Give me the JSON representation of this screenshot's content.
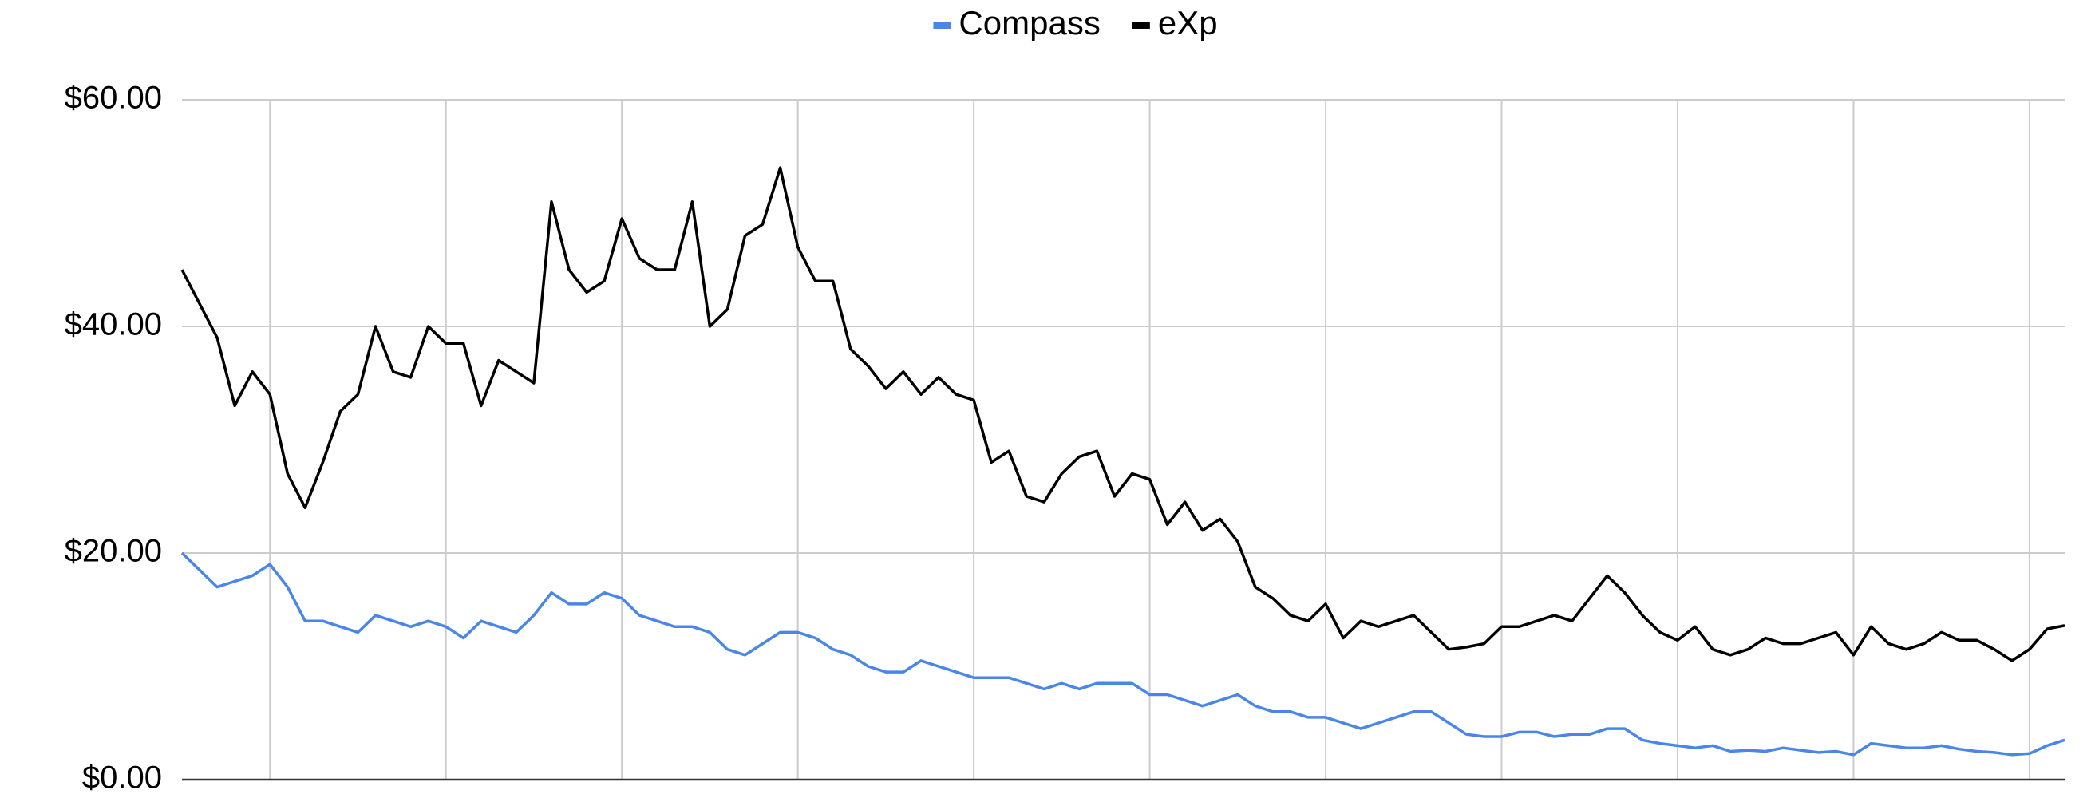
{
  "chart_data": {
    "type": "line",
    "categories": [
      null,
      null,
      null,
      null,
      null,
      null,
      null,
      null,
      null,
      null,
      null,
      null,
      null,
      null,
      null,
      null,
      null,
      null,
      null,
      null,
      null,
      null,
      null,
      null,
      null,
      null,
      null,
      null,
      null,
      null,
      null,
      null,
      null,
      null,
      null,
      null,
      null,
      null,
      null,
      null,
      null,
      null,
      null,
      null,
      null,
      null,
      null,
      null,
      null,
      null,
      null,
      null,
      null,
      null,
      null,
      null,
      null,
      null,
      null,
      null,
      null,
      null,
      null,
      null,
      null,
      null,
      null,
      null,
      null,
      null,
      null,
      null,
      null,
      null,
      null,
      null,
      null,
      null,
      null,
      null,
      null,
      null,
      null,
      null,
      null,
      null,
      null,
      null,
      null,
      null,
      null,
      null,
      null,
      null,
      null,
      null,
      null,
      null,
      null,
      null,
      null,
      null,
      null,
      null,
      null,
      null,
      null,
      null
    ],
    "series": [
      {
        "name": "Compass",
        "color": "#4a86e8",
        "values": [
          20,
          18.5,
          17,
          17.5,
          18,
          19,
          17,
          14,
          14,
          13.5,
          13,
          14.5,
          14,
          13.5,
          14,
          13.5,
          12.5,
          14,
          13.5,
          13,
          14.5,
          16.5,
          15.5,
          15.5,
          16.5,
          16,
          14.5,
          14,
          13.5,
          13.5,
          13,
          11.5,
          11,
          12,
          13,
          13,
          12.5,
          11.5,
          11,
          10,
          9.5,
          9.5,
          10.5,
          10,
          9.5,
          9,
          9,
          9,
          8.5,
          8,
          8.5,
          8,
          8.5,
          8.5,
          8.5,
          7.5,
          7.5,
          7,
          6.5,
          7,
          7.5,
          6.5,
          6,
          6,
          5.5,
          5.5,
          5,
          4.5,
          5,
          5.5,
          6,
          6,
          5,
          4,
          3.8,
          3.8,
          4.2,
          4.2,
          3.8,
          4,
          4,
          4.5,
          4.5,
          3.5,
          3.2,
          3,
          2.8,
          3,
          2.5,
          2.6,
          2.5,
          2.8,
          2.6,
          2.4,
          2.5,
          2.2,
          3.2,
          3,
          2.8,
          2.8,
          3,
          2.7,
          2.5,
          2.4,
          2.2,
          2.3,
          3,
          3.5
        ]
      },
      {
        "name": "eXp",
        "color": "#000000",
        "values": [
          45,
          42,
          39,
          33,
          36,
          34,
          27,
          24,
          28,
          32.5,
          34,
          40,
          36,
          35.5,
          40,
          38.5,
          38.5,
          33,
          37,
          36,
          35,
          51,
          45,
          43,
          44,
          49.5,
          46,
          45,
          45,
          51,
          40,
          41.5,
          48,
          49,
          54,
          47,
          44,
          44,
          38,
          36.5,
          34.5,
          36,
          34,
          35.5,
          34,
          33.5,
          28,
          29,
          25,
          24.5,
          27,
          28.5,
          29,
          25,
          27,
          26.5,
          22.5,
          24.5,
          22,
          23,
          21,
          17,
          16,
          14.5,
          14,
          15.5,
          12.5,
          14,
          13.5,
          14,
          14.5,
          13,
          11.5,
          11.7,
          12,
          13.5,
          13.5,
          14,
          14.5,
          14,
          16,
          18,
          16.5,
          14.5,
          13,
          12.3,
          13.5,
          11.5,
          11,
          11.5,
          12.5,
          12,
          12,
          12.5,
          13,
          11,
          13.5,
          12,
          11.5,
          12,
          13,
          12.3,
          12.3,
          11.5,
          10.5,
          11.5,
          13.3,
          13.6
        ]
      }
    ],
    "ylim": [
      0,
      60
    ],
    "yticks": [
      {
        "value": 0,
        "label": "$0.00"
      },
      {
        "value": 20,
        "label": "$20.00"
      },
      {
        "value": 40,
        "label": "$40.00"
      },
      {
        "value": 60,
        "label": "$60.00"
      }
    ],
    "grid": true,
    "legend": "top"
  }
}
